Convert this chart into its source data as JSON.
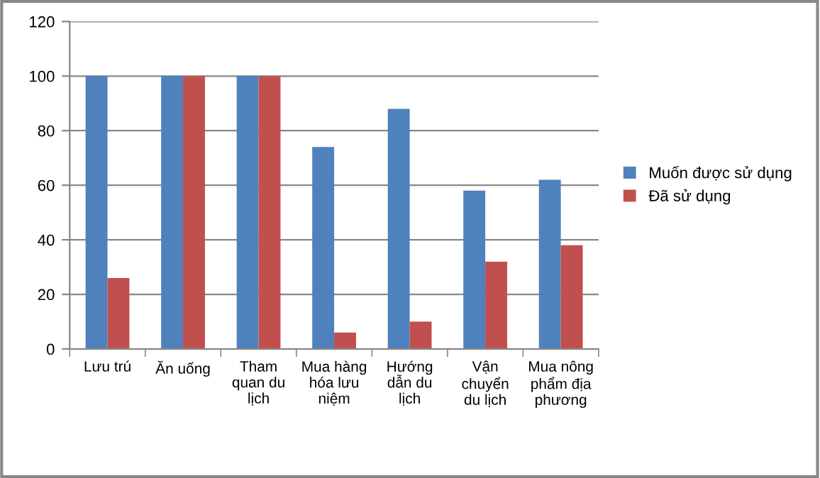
{
  "chart_data": {
    "type": "bar",
    "categories": [
      "Lưu trú",
      "Ăn uống",
      "Tham quan du lịch",
      "Mua hàng hóa lưu niệm",
      "Hướng dẫn du lịch",
      "Vận chuyển du lịch",
      "Mua nông phẩm địa phương"
    ],
    "series": [
      {
        "name": "Muốn được sử dụng",
        "color": "#4f81bd",
        "values": [
          100,
          100,
          100,
          74,
          88,
          58,
          62
        ]
      },
      {
        "name": "Đã sử dụng",
        "color": "#c0504d",
        "values": [
          26,
          100,
          100,
          6,
          10,
          32,
          38
        ]
      }
    ],
    "ylim": [
      0,
      120
    ],
    "yticks": [
      0,
      20,
      40,
      60,
      80,
      100,
      120
    ],
    "grid": "y",
    "legend": "right"
  }
}
